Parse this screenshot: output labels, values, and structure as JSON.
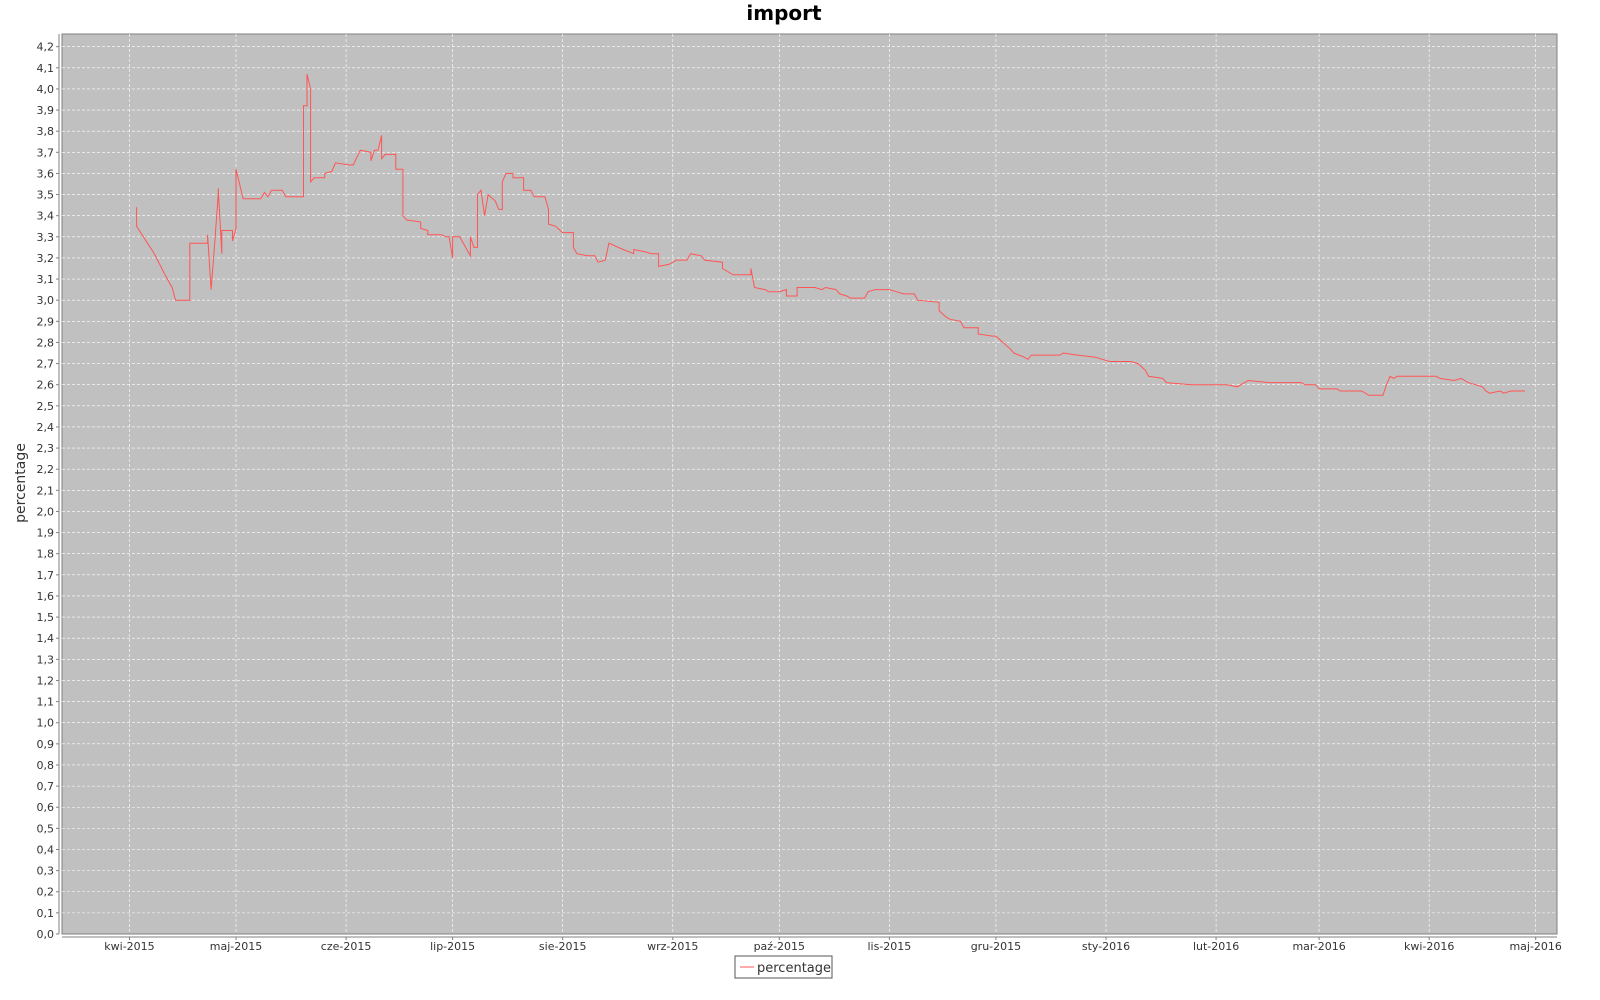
{
  "chart_data": {
    "type": "line",
    "title": "import",
    "xlabel": "",
    "ylabel": "percentage",
    "plot_background": "#c0c0c0",
    "grid": true,
    "legend_position": "bottom-center",
    "x_type": "date",
    "xlim": [
      "2015-03-13",
      "2016-05-07"
    ],
    "ylim": [
      0.0,
      4.26
    ],
    "x_ticks": [
      {
        "date": "2015-04-01",
        "label": "kwi-2015"
      },
      {
        "date": "2015-05-01",
        "label": "maj-2015"
      },
      {
        "date": "2015-06-01",
        "label": "cze-2015"
      },
      {
        "date": "2015-07-01",
        "label": "lip-2015"
      },
      {
        "date": "2015-08-01",
        "label": "sie-2015"
      },
      {
        "date": "2015-09-01",
        "label": "wrz-2015"
      },
      {
        "date": "2015-10-01",
        "label": "paź-2015"
      },
      {
        "date": "2015-11-01",
        "label": "lis-2015"
      },
      {
        "date": "2015-12-01",
        "label": "gru-2015"
      },
      {
        "date": "2016-01-01",
        "label": "sty-2016"
      },
      {
        "date": "2016-02-01",
        "label": "lut-2016"
      },
      {
        "date": "2016-03-01",
        "label": "mar-2016"
      },
      {
        "date": "2016-04-01",
        "label": "kwi-2016"
      },
      {
        "date": "2016-05-01",
        "label": "maj-2016"
      }
    ],
    "y_ticks": [
      "0,0",
      "0,1",
      "0,2",
      "0,3",
      "0,4",
      "0,5",
      "0,6",
      "0,7",
      "0,8",
      "0,9",
      "1,0",
      "1,1",
      "1,2",
      "1,3",
      "1,4",
      "1,5",
      "1,6",
      "1,7",
      "1,8",
      "1,9",
      "2,0",
      "2,1",
      "2,2",
      "2,3",
      "2,4",
      "2,5",
      "2,6",
      "2,7",
      "2,8",
      "2,9",
      "3,0",
      "3,1",
      "3,2",
      "3,3",
      "3,4",
      "3,5",
      "3,6",
      "3,7",
      "3,8",
      "3,9",
      "4,0",
      "4,1",
      "4,2"
    ],
    "series": [
      {
        "name": "percentage",
        "color": "#ff5555",
        "points": [
          [
            "2015-04-03",
            3.44
          ],
          [
            "2015-04-03",
            3.35
          ],
          [
            "2015-04-08",
            3.22
          ],
          [
            "2015-04-11",
            3.12
          ],
          [
            "2015-04-13",
            3.06
          ],
          [
            "2015-04-14",
            3.0
          ],
          [
            "2015-04-18",
            3.0
          ],
          [
            "2015-04-18",
            3.27
          ],
          [
            "2015-04-20",
            3.27
          ],
          [
            "2015-04-23",
            3.27
          ],
          [
            "2015-04-23",
            3.31
          ],
          [
            "2015-04-24",
            3.05
          ],
          [
            "2015-04-25",
            3.27
          ],
          [
            "2015-04-26",
            3.5
          ],
          [
            "2015-04-26",
            3.53
          ],
          [
            "2015-04-27",
            3.22
          ],
          [
            "2015-04-27",
            3.33
          ],
          [
            "2015-04-30",
            3.33
          ],
          [
            "2015-04-30",
            3.28
          ],
          [
            "2015-05-01",
            3.34
          ],
          [
            "2015-05-01",
            3.62
          ],
          [
            "2015-05-02",
            3.55
          ],
          [
            "2015-05-03",
            3.48
          ],
          [
            "2015-05-08",
            3.48
          ],
          [
            "2015-05-09",
            3.51
          ],
          [
            "2015-05-10",
            3.49
          ],
          [
            "2015-05-11",
            3.52
          ],
          [
            "2015-05-14",
            3.52
          ],
          [
            "2015-05-15",
            3.49
          ],
          [
            "2015-05-19",
            3.49
          ],
          [
            "2015-05-20",
            3.49
          ],
          [
            "2015-05-20",
            3.92
          ],
          [
            "2015-05-21",
            3.92
          ],
          [
            "2015-05-21",
            4.07
          ],
          [
            "2015-05-22",
            4.0
          ],
          [
            "2015-05-22",
            3.75
          ],
          [
            "2015-05-22",
            3.56
          ],
          [
            "2015-05-23",
            3.58
          ],
          [
            "2015-05-26",
            3.58
          ],
          [
            "2015-05-26",
            3.6
          ],
          [
            "2015-05-28",
            3.61
          ],
          [
            "2015-05-29",
            3.65
          ],
          [
            "2015-06-02",
            3.64
          ],
          [
            "2015-06-03",
            3.64
          ],
          [
            "2015-06-05",
            3.71
          ],
          [
            "2015-06-08",
            3.7
          ],
          [
            "2015-06-08",
            3.66
          ],
          [
            "2015-06-09",
            3.71
          ],
          [
            "2015-06-10",
            3.71
          ],
          [
            "2015-06-11",
            3.78
          ],
          [
            "2015-06-11",
            3.67
          ],
          [
            "2015-06-12",
            3.69
          ],
          [
            "2015-06-15",
            3.69
          ],
          [
            "2015-06-15",
            3.62
          ],
          [
            "2015-06-17",
            3.62
          ],
          [
            "2015-06-17",
            3.4
          ],
          [
            "2015-06-18",
            3.38
          ],
          [
            "2015-06-22",
            3.37
          ],
          [
            "2015-06-22",
            3.34
          ],
          [
            "2015-06-24",
            3.33
          ],
          [
            "2015-06-24",
            3.31
          ],
          [
            "2015-06-28",
            3.31
          ],
          [
            "2015-06-29",
            3.3
          ],
          [
            "2015-06-30",
            3.3
          ],
          [
            "2015-07-01",
            3.2
          ],
          [
            "2015-07-01",
            3.3
          ],
          [
            "2015-07-03",
            3.3
          ],
          [
            "2015-07-06",
            3.21
          ],
          [
            "2015-07-06",
            3.3
          ],
          [
            "2015-07-07",
            3.25
          ],
          [
            "2015-07-08",
            3.25
          ],
          [
            "2015-07-08",
            3.5
          ],
          [
            "2015-07-09",
            3.52
          ],
          [
            "2015-07-10",
            3.4
          ],
          [
            "2015-07-11",
            3.5
          ],
          [
            "2015-07-13",
            3.47
          ],
          [
            "2015-07-14",
            3.43
          ],
          [
            "2015-07-15",
            3.43
          ],
          [
            "2015-07-15",
            3.56
          ],
          [
            "2015-07-16",
            3.6
          ],
          [
            "2015-07-18",
            3.6
          ],
          [
            "2015-07-18",
            3.58
          ],
          [
            "2015-07-21",
            3.58
          ],
          [
            "2015-07-21",
            3.52
          ],
          [
            "2015-07-23",
            3.52
          ],
          [
            "2015-07-24",
            3.49
          ],
          [
            "2015-07-27",
            3.49
          ],
          [
            "2015-07-28",
            3.43
          ],
          [
            "2015-07-28",
            3.36
          ],
          [
            "2015-07-30",
            3.35
          ],
          [
            "2015-08-01",
            3.32
          ],
          [
            "2015-08-04",
            3.32
          ],
          [
            "2015-08-04",
            3.25
          ],
          [
            "2015-08-05",
            3.22
          ],
          [
            "2015-08-08",
            3.21
          ],
          [
            "2015-08-10",
            3.21
          ],
          [
            "2015-08-11",
            3.18
          ],
          [
            "2015-08-13",
            3.19
          ],
          [
            "2015-08-14",
            3.27
          ],
          [
            "2015-08-18",
            3.24
          ],
          [
            "2015-08-21",
            3.22
          ],
          [
            "2015-08-21",
            3.24
          ],
          [
            "2015-08-24",
            3.23
          ],
          [
            "2015-08-26",
            3.22
          ],
          [
            "2015-08-28",
            3.22
          ],
          [
            "2015-08-28",
            3.16
          ],
          [
            "2015-08-31",
            3.17
          ],
          [
            "2015-09-02",
            3.19
          ],
          [
            "2015-09-05",
            3.19
          ],
          [
            "2015-09-06",
            3.22
          ],
          [
            "2015-09-09",
            3.21
          ],
          [
            "2015-09-10",
            3.19
          ],
          [
            "2015-09-15",
            3.18
          ],
          [
            "2015-09-15",
            3.15
          ],
          [
            "2015-09-18",
            3.12
          ],
          [
            "2015-09-23",
            3.12
          ],
          [
            "2015-09-23",
            3.15
          ],
          [
            "2015-09-24",
            3.06
          ],
          [
            "2015-09-27",
            3.05
          ],
          [
            "2015-09-28",
            3.04
          ],
          [
            "2015-10-01",
            3.04
          ],
          [
            "2015-10-03",
            3.05
          ],
          [
            "2015-10-03",
            3.02
          ],
          [
            "2015-10-06",
            3.02
          ],
          [
            "2015-10-06",
            3.06
          ],
          [
            "2015-10-11",
            3.06
          ],
          [
            "2015-10-13",
            3.05
          ],
          [
            "2015-10-14",
            3.06
          ],
          [
            "2015-10-17",
            3.05
          ],
          [
            "2015-10-18",
            3.03
          ],
          [
            "2015-10-20",
            3.02
          ],
          [
            "2015-10-21",
            3.01
          ],
          [
            "2015-10-25",
            3.01
          ],
          [
            "2015-10-26",
            3.04
          ],
          [
            "2015-10-28",
            3.05
          ],
          [
            "2015-11-01",
            3.05
          ],
          [
            "2015-11-03",
            3.04
          ],
          [
            "2015-11-05",
            3.03
          ],
          [
            "2015-11-08",
            3.03
          ],
          [
            "2015-11-09",
            3.0
          ],
          [
            "2015-11-15",
            2.99
          ],
          [
            "2015-11-15",
            2.95
          ],
          [
            "2015-11-17",
            2.92
          ],
          [
            "2015-11-18",
            2.91
          ],
          [
            "2015-11-21",
            2.9
          ],
          [
            "2015-11-22",
            2.87
          ],
          [
            "2015-11-26",
            2.87
          ],
          [
            "2015-11-26",
            2.84
          ],
          [
            "2015-11-30",
            2.83
          ],
          [
            "2015-12-01",
            2.83
          ],
          [
            "2015-12-03",
            2.8
          ],
          [
            "2015-12-05",
            2.77
          ],
          [
            "2015-12-06",
            2.75
          ],
          [
            "2015-12-09",
            2.73
          ],
          [
            "2015-12-10",
            2.72
          ],
          [
            "2015-12-11",
            2.74
          ],
          [
            "2015-12-19",
            2.74
          ],
          [
            "2015-12-20",
            2.75
          ],
          [
            "2015-12-24",
            2.74
          ],
          [
            "2015-12-29",
            2.73
          ],
          [
            "2016-01-02",
            2.71
          ],
          [
            "2016-01-08",
            2.71
          ],
          [
            "2016-01-10",
            2.7
          ],
          [
            "2016-01-12",
            2.67
          ],
          [
            "2016-01-13",
            2.64
          ],
          [
            "2016-01-17",
            2.63
          ],
          [
            "2016-01-18",
            2.61
          ],
          [
            "2016-01-25",
            2.6
          ],
          [
            "2016-02-04",
            2.6
          ],
          [
            "2016-02-07",
            2.59
          ],
          [
            "2016-02-10",
            2.62
          ],
          [
            "2016-02-16",
            2.61
          ],
          [
            "2016-02-25",
            2.61
          ],
          [
            "2016-02-26",
            2.6
          ],
          [
            "2016-02-29",
            2.6
          ],
          [
            "2016-03-01",
            2.58
          ],
          [
            "2016-03-06",
            2.58
          ],
          [
            "2016-03-07",
            2.57
          ],
          [
            "2016-03-13",
            2.57
          ],
          [
            "2016-03-15",
            2.55
          ],
          [
            "2016-03-19",
            2.55
          ],
          [
            "2016-03-20",
            2.6
          ],
          [
            "2016-03-21",
            2.64
          ],
          [
            "2016-03-22",
            2.63
          ],
          [
            "2016-03-23",
            2.64
          ],
          [
            "2016-03-27",
            2.64
          ],
          [
            "2016-03-28",
            2.64
          ],
          [
            "2016-04-01",
            2.64
          ],
          [
            "2016-04-03",
            2.64
          ],
          [
            "2016-04-04",
            2.63
          ],
          [
            "2016-04-08",
            2.62
          ],
          [
            "2016-04-10",
            2.63
          ],
          [
            "2016-04-11",
            2.62
          ],
          [
            "2016-04-12",
            2.61
          ],
          [
            "2016-04-14",
            2.6
          ],
          [
            "2016-04-16",
            2.59
          ],
          [
            "2016-04-17",
            2.57
          ],
          [
            "2016-04-18",
            2.56
          ],
          [
            "2016-04-21",
            2.57
          ],
          [
            "2016-04-22",
            2.56
          ],
          [
            "2016-04-24",
            2.57
          ],
          [
            "2016-04-28",
            2.57
          ]
        ]
      }
    ]
  }
}
